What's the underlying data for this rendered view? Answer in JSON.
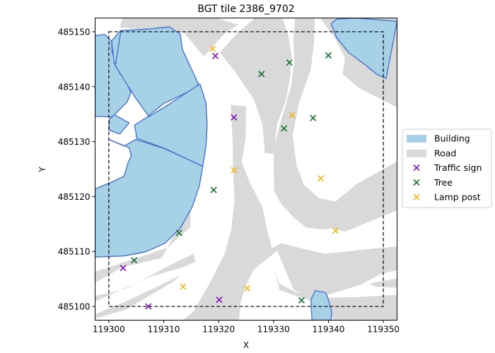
{
  "chart_data": {
    "type": "scatter",
    "title": "BGT tile 2386_9702",
    "xlabel": "X",
    "ylabel": "Y",
    "xlim": [
      119297.5,
      119352.5
    ],
    "ylim": [
      485097.5,
      485152.5
    ],
    "xticks": [
      119300,
      119310,
      119320,
      119330,
      119340,
      119350
    ],
    "yticks": [
      485100,
      485110,
      485120,
      485130,
      485140,
      485150
    ],
    "tile_bbox": {
      "x": [
        119300,
        119350
      ],
      "y": [
        485100,
        485150
      ]
    },
    "legend": {
      "placement": "outside-right",
      "entries": [
        {
          "label": "Building",
          "kind": "patch",
          "color": "#a7d1e7",
          "edge": "#4a74c9"
        },
        {
          "label": "Road",
          "kind": "patch",
          "color": "#d9d9d9"
        },
        {
          "label": "Traffic sign",
          "kind": "marker",
          "color": "#7b13b5"
        },
        {
          "label": "Tree",
          "kind": "marker",
          "color": "#146b2d"
        },
        {
          "label": "Lamp post",
          "kind": "marker",
          "color": "#f2b51a"
        }
      ]
    },
    "areas": {
      "building": [
        [
          [
            119297.5,
            485149.3
          ],
          [
            119299.2,
            485149.5
          ],
          [
            119300.5,
            485148.3
          ],
          [
            119300.6,
            485146.2
          ],
          [
            119302.0,
            485142.4
          ],
          [
            119302.9,
            485141.4
          ],
          [
            119304.0,
            485139.0
          ],
          [
            119303.4,
            485137.3
          ],
          [
            119300.6,
            485134.5
          ],
          [
            119297.5,
            485134.6
          ]
        ],
        [
          [
            119300.5,
            485148.3
          ],
          [
            119302.1,
            485150.2
          ],
          [
            119307.4,
            485150.5
          ],
          [
            119301.0,
            485144.1
          ]
        ],
        [
          [
            119302.2,
            485150.2
          ],
          [
            119307.4,
            485150.5
          ],
          [
            119311.0,
            485150.9
          ],
          [
            119313.0,
            485149.6
          ],
          [
            119313.4,
            485146.8
          ],
          [
            119316.3,
            485140.5
          ],
          [
            119315.6,
            485139.6
          ],
          [
            119310.1,
            485137.0
          ],
          [
            119307.2,
            485134.7
          ],
          [
            119304.7,
            485138.2
          ],
          [
            119301.2,
            485143.8
          ]
        ],
        [
          [
            119307.2,
            485134.5
          ],
          [
            119310.5,
            485136.5
          ],
          [
            119316.6,
            485140.5
          ],
          [
            119317.7,
            485137.0
          ],
          [
            119317.9,
            485133.0
          ],
          [
            119317.7,
            485129.2
          ],
          [
            119317.1,
            485125.5
          ],
          [
            119310.1,
            485128.8
          ],
          [
            119305.1,
            485130.6
          ],
          [
            119304.7,
            485133.0
          ],
          [
            119307.5,
            485134.8
          ]
        ],
        [
          [
            119300.1,
            485134.0
          ],
          [
            119300.0,
            485132.1
          ],
          [
            119302.0,
            485131.4
          ],
          [
            119303.7,
            485133.4
          ],
          [
            119301.0,
            485134.9
          ]
        ],
        [
          [
            119300.0,
            485130.4
          ],
          [
            119302.8,
            485129.2
          ],
          [
            119304.9,
            485130.4
          ],
          [
            119310.2,
            485128.7
          ],
          [
            119317.1,
            485125.5
          ],
          [
            119316.5,
            485122.0
          ],
          [
            119315.2,
            485118.1
          ],
          [
            119313.0,
            485114.2
          ],
          [
            119310.2,
            485111.5
          ],
          [
            119306.6,
            485109.9
          ],
          [
            119302.7,
            485109.2
          ],
          [
            119297.5,
            485109.0
          ],
          [
            119297.5,
            485121.4
          ],
          [
            119300.0,
            485122.4
          ],
          [
            119302.8,
            485123.7
          ],
          [
            119303.5,
            485126.2
          ],
          [
            119304.1,
            485127.4
          ],
          [
            119303.7,
            485128.9
          ]
        ],
        [
          [
            119340.5,
            485151.5
          ],
          [
            119341.5,
            485148.9
          ],
          [
            119343.7,
            485146.2
          ],
          [
            119346.4,
            485144.2
          ],
          [
            119348.9,
            485142.2
          ],
          [
            119350.5,
            485141.5
          ],
          [
            119352.5,
            485151.9
          ],
          [
            119345.0,
            485152.5
          ],
          [
            119341.5,
            485152.3
          ]
        ],
        [
          [
            119337.6,
            485102.9
          ],
          [
            119339.5,
            485102.5
          ],
          [
            119339.9,
            485101.5
          ],
          [
            119340.6,
            485099.0
          ],
          [
            119340.5,
            485097.5
          ],
          [
            119337.0,
            485097.5
          ],
          [
            119336.8,
            485101.2
          ]
        ]
      ],
      "road": [
        [
          [
            119302.5,
            485152.5
          ],
          [
            119302.0,
            485150.8
          ],
          [
            119308.1,
            485150.3
          ],
          [
            119313.7,
            485149.8
          ],
          [
            119317.3,
            485145.5
          ],
          [
            119321.2,
            485149.8
          ],
          [
            119323.6,
            485151.3
          ],
          [
            119319.7,
            485152.5
          ]
        ],
        [
          [
            119320.2,
            485146.2
          ],
          [
            119322.9,
            485142.9
          ],
          [
            119326.4,
            485137.7
          ],
          [
            119328.0,
            485133.1
          ],
          [
            119328.4,
            485127.9
          ],
          [
            119330.0,
            485127.8
          ],
          [
            119330.6,
            485133.1
          ],
          [
            119332.3,
            485137.7
          ],
          [
            119333.0,
            485141.5
          ],
          [
            119333.3,
            485145.9
          ],
          [
            119332.7,
            485149.3
          ],
          [
            119331.6,
            485152.5
          ],
          [
            119326.6,
            485152.5
          ],
          [
            119323.1,
            485149.4
          ]
        ],
        [
          [
            119330.1,
            485121.0
          ],
          [
            119330.0,
            485128.9
          ],
          [
            119331.4,
            485133.9
          ],
          [
            119333.2,
            485140.1
          ],
          [
            119333.8,
            485144.8
          ],
          [
            119333.6,
            485148.4
          ],
          [
            119333.9,
            485152.5
          ],
          [
            119337.5,
            485152.5
          ],
          [
            119337.4,
            485148.4
          ],
          [
            119336.8,
            485143.2
          ],
          [
            119334.6,
            485136.9
          ],
          [
            119333.5,
            485131.1
          ],
          [
            119334.2,
            485125.6
          ],
          [
            119335.6,
            485122.1
          ],
          [
            119338.3,
            485119.7
          ],
          [
            119341.3,
            485119.1
          ],
          [
            119345.2,
            485122.3
          ],
          [
            119352.5,
            485126.4
          ],
          [
            119352.5,
            485136.2
          ],
          [
            119345.5,
            485139.8
          ],
          [
            119342.6,
            485142.3
          ],
          [
            119343.0,
            485145.2
          ],
          [
            119341.4,
            485148.5
          ],
          [
            119338.5,
            485152.5
          ],
          [
            119352.5,
            485152.5
          ],
          [
            119352.5,
            485117.5
          ],
          [
            119343.0,
            485113.6
          ],
          [
            119340.7,
            485114.3
          ],
          [
            119339.4,
            485114.0
          ],
          [
            119336.0,
            485114.3
          ],
          [
            119333.7,
            485116.2
          ],
          [
            119331.4,
            485118.6
          ]
        ],
        [
          [
            119322.2,
            485136.7
          ],
          [
            119322.6,
            485128.7
          ],
          [
            119322.6,
            485125.1
          ],
          [
            119322.9,
            485119.5
          ],
          [
            119322.3,
            485113.9
          ],
          [
            119321.1,
            485109.6
          ],
          [
            119318.4,
            485104.3
          ],
          [
            119315.5,
            485099.2
          ],
          [
            119313.5,
            485097.5
          ],
          [
            119323.7,
            485097.5
          ],
          [
            119324.0,
            485100.6
          ],
          [
            119324.8,
            485103.5
          ],
          [
            119326.3,
            485106.6
          ],
          [
            119330.7,
            485110.2
          ],
          [
            119331.3,
            485108.6
          ],
          [
            119333.7,
            485103.0
          ],
          [
            119337.6,
            485101.4
          ],
          [
            119340.8,
            485102.4
          ],
          [
            119346.0,
            485104.0
          ],
          [
            119349.7,
            485106.0
          ],
          [
            119352.5,
            485106.6
          ],
          [
            119352.5,
            485110.9
          ],
          [
            119347.9,
            485110.5
          ],
          [
            119343.4,
            485110.0
          ],
          [
            119339.3,
            485109.6
          ],
          [
            119334.5,
            485110.7
          ],
          [
            119331.4,
            485111.5
          ],
          [
            119329.7,
            485110.6
          ],
          [
            119328.8,
            485114.1
          ],
          [
            119328.0,
            485118.0
          ],
          [
            119325.7,
            485122.5
          ],
          [
            119324.2,
            485126.3
          ],
          [
            119324.9,
            485130.5
          ],
          [
            119325.0,
            485136.4
          ]
        ],
        [
          [
            119297.5,
            485106.3
          ],
          [
            119310.7,
            485110.7
          ],
          [
            119314.9,
            485114.5
          ],
          [
            119314.8,
            485118.2
          ],
          [
            119309.6,
            485108.8
          ],
          [
            119302.6,
            485107.2
          ],
          [
            119297.5,
            485104.3
          ]
        ],
        [
          [
            119297.5,
            485098.6
          ],
          [
            119302.9,
            485100.8
          ],
          [
            119308.6,
            485103.5
          ],
          [
            119313.1,
            485105.7
          ],
          [
            119311.9,
            485104.6
          ],
          [
            119303.3,
            485099.5
          ],
          [
            119297.5,
            485097.8
          ]
        ],
        [
          [
            119330.1,
            485106.9
          ],
          [
            119331.0,
            485104.2
          ],
          [
            119333.8,
            485102.7
          ],
          [
            119339.1,
            485101.6
          ],
          [
            119344.9,
            485101.7
          ],
          [
            119352.5,
            485102.1
          ],
          [
            119352.5,
            485097.5
          ],
          [
            119341.0,
            485097.5
          ],
          [
            119339.6,
            485100.4
          ],
          [
            119337.1,
            485101.0
          ],
          [
            119333.2,
            485102.2
          ],
          [
            119331.1,
            485103.0
          ]
        ],
        [
          [
            119347.5,
            485104.2
          ],
          [
            119352.5,
            485105.1
          ],
          [
            119352.5,
            485103.4
          ],
          [
            119348.5,
            485103.6
          ]
        ],
        [
          [
            119297.5,
            485100.9
          ],
          [
            119307.6,
            485105.4
          ],
          [
            119313.6,
            485107.2
          ],
          [
            119315.8,
            485108.1
          ],
          [
            119315.4,
            485109.6
          ],
          [
            119311.1,
            485107.5
          ],
          [
            119303.1,
            485103.2
          ],
          [
            119297.5,
            485101.9
          ]
        ]
      ]
    },
    "series": [
      {
        "name": "Traffic sign",
        "color": "#7b13b5",
        "marker": "x",
        "x": [
          119302.6,
          119307.2,
          119319.4,
          119322.8,
          119320.1
        ],
        "y": [
          485107.0,
          485100.0,
          485145.6,
          485134.4,
          485101.2
        ]
      },
      {
        "name": "Tree",
        "color": "#146b2d",
        "marker": "x",
        "x": [
          119304.6,
          119312.8,
          119319.1,
          119327.8,
          119332.9,
          119331.9,
          119337.2,
          119340.0,
          119335.1
        ],
        "y": [
          485108.4,
          485113.4,
          485121.2,
          485142.3,
          485144.4,
          485132.4,
          485134.3,
          485145.7,
          485101.1
        ]
      },
      {
        "name": "Lamp post",
        "color": "#f2b51a",
        "marker": "x",
        "x": [
          119318.9,
          119333.4,
          119322.8,
          119338.6,
          119341.3,
          119313.5,
          119325.2
        ],
        "y": [
          485146.9,
          485134.8,
          485124.8,
          485123.3,
          485113.8,
          485103.6,
          485103.3
        ]
      }
    ]
  }
}
